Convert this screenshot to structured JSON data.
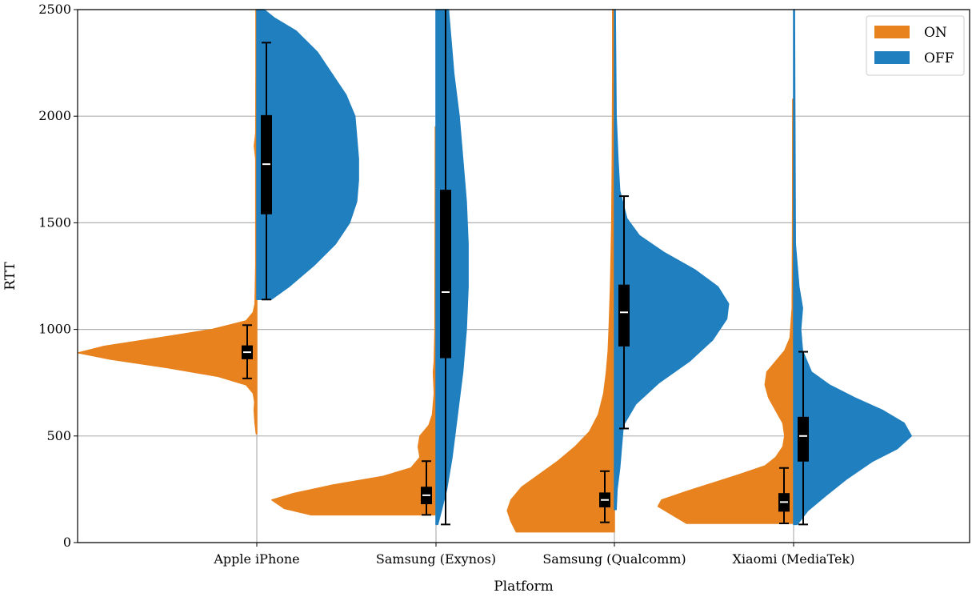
{
  "chart_data": {
    "type": "split-violin",
    "xlabel": "Platform",
    "ylabel": "RTT",
    "ylim": [
      0,
      2500
    ],
    "yticks": [
      0,
      500,
      1000,
      1500,
      2000,
      2500
    ],
    "categories": [
      "Apple iPhone",
      "Samsung (Exynos)",
      "Samsung (Qualcomm)",
      "Xiaomi (MediaTek)"
    ],
    "grid": true,
    "legend": {
      "position": "top-right",
      "entries": [
        "ON",
        "OFF"
      ]
    },
    "colors": {
      "ON": "#E8821E",
      "OFF": "#1F7FBF"
    },
    "series": [
      {
        "name": "ON",
        "side": "left",
        "box": [
          {
            "whisker_low": 770,
            "q1": 860,
            "median": 893,
            "q3": 925,
            "whisker_high": 1020
          },
          {
            "whisker_low": 130,
            "q1": 180,
            "median": 222,
            "q3": 262,
            "whisker_high": 382
          },
          {
            "whisker_low": 95,
            "q1": 165,
            "median": 200,
            "q3": 235,
            "whisker_high": 335
          },
          {
            "whisker_low": 90,
            "q1": 145,
            "median": 190,
            "q3": 232,
            "whisker_high": 350
          }
        ],
        "density": [
          {
            "ymin": 510,
            "ymax": 2500,
            "profile": [
              [
                510,
                0.003
              ],
              [
                560,
                0.01
              ],
              [
                620,
                0.015
              ],
              [
                660,
                0.012
              ],
              [
                700,
                0.02
              ],
              [
                740,
                0.06
              ],
              [
                780,
                0.22
              ],
              [
                820,
                0.5
              ],
              [
                860,
                0.82
              ],
              [
                890,
                1.0
              ],
              [
                920,
                0.86
              ],
              [
                960,
                0.55
              ],
              [
                1000,
                0.25
              ],
              [
                1040,
                0.06
              ],
              [
                1080,
                0.02
              ],
              [
                1120,
                0.01
              ],
              [
                1300,
                0.006
              ],
              [
                1600,
                0.006
              ],
              [
                1800,
                0.006
              ],
              [
                1860,
                0.014
              ],
              [
                1920,
                0.006
              ],
              [
                2200,
                0.005
              ],
              [
                2500,
                0.005
              ]
            ]
          },
          {
            "ymin": 130,
            "ymax": 1950,
            "profile": [
              [
                130,
                0.7
              ],
              [
                160,
                0.85
              ],
              [
                200,
                0.92
              ],
              [
                230,
                0.8
              ],
              [
                270,
                0.58
              ],
              [
                310,
                0.3
              ],
              [
                350,
                0.14
              ],
              [
                400,
                0.09
              ],
              [
                450,
                0.1
              ],
              [
                500,
                0.09
              ],
              [
                550,
                0.04
              ],
              [
                600,
                0.02
              ],
              [
                700,
                0.01
              ],
              [
                800,
                0.015
              ],
              [
                850,
                0.01
              ],
              [
                1000,
                0.006
              ],
              [
                1400,
                0.005
              ],
              [
                1950,
                0.004
              ]
            ]
          },
          {
            "ymin": 50,
            "ymax": 2500,
            "profile": [
              [
                50,
                0.55
              ],
              [
                100,
                0.58
              ],
              [
                150,
                0.6
              ],
              [
                200,
                0.58
              ],
              [
                260,
                0.52
              ],
              [
                320,
                0.42
              ],
              [
                380,
                0.32
              ],
              [
                450,
                0.22
              ],
              [
                520,
                0.14
              ],
              [
                600,
                0.09
              ],
              [
                700,
                0.06
              ],
              [
                800,
                0.045
              ],
              [
                900,
                0.035
              ],
              [
                1000,
                0.03
              ],
              [
                1200,
                0.022
              ],
              [
                1500,
                0.015
              ],
              [
                1800,
                0.012
              ],
              [
                2200,
                0.01
              ],
              [
                2500,
                0.01
              ]
            ]
          },
          {
            "ymin": 90,
            "ymax": 2080,
            "profile": [
              [
                90,
                0.6
              ],
              [
                130,
                0.68
              ],
              [
                170,
                0.76
              ],
              [
                200,
                0.74
              ],
              [
                240,
                0.6
              ],
              [
                280,
                0.45
              ],
              [
                320,
                0.3
              ],
              [
                360,
                0.16
              ],
              [
                400,
                0.1
              ],
              [
                450,
                0.06
              ],
              [
                500,
                0.05
              ],
              [
                560,
                0.06
              ],
              [
                620,
                0.1
              ],
              [
                680,
                0.14
              ],
              [
                740,
                0.16
              ],
              [
                800,
                0.15
              ],
              [
                850,
                0.1
              ],
              [
                900,
                0.05
              ],
              [
                960,
                0.02
              ],
              [
                1100,
                0.008
              ],
              [
                1500,
                0.006
              ],
              [
                2080,
                0.005
              ]
            ]
          }
        ]
      },
      {
        "name": "OFF",
        "side": "right",
        "box": [
          {
            "whisker_low": 1140,
            "q1": 1540,
            "median": 1775,
            "q3": 2005,
            "whisker_high": 2345
          },
          {
            "whisker_low": 85,
            "q1": 865,
            "median": 1175,
            "q3": 1655,
            "whisker_high": 2500
          },
          {
            "whisker_low": 535,
            "q1": 920,
            "median": 1080,
            "q3": 1210,
            "whisker_high": 1625
          },
          {
            "whisker_low": 85,
            "q1": 380,
            "median": 500,
            "q3": 590,
            "whisker_high": 895
          }
        ],
        "density": [
          {
            "ymin": 1140,
            "ymax": 2500,
            "profile": [
              [
                1140,
                0.08
              ],
              [
                1200,
                0.18
              ],
              [
                1300,
                0.32
              ],
              [
                1400,
                0.44
              ],
              [
                1500,
                0.52
              ],
              [
                1600,
                0.56
              ],
              [
                1700,
                0.57
              ],
              [
                1800,
                0.57
              ],
              [
                1900,
                0.56
              ],
              [
                2000,
                0.55
              ],
              [
                2100,
                0.5
              ],
              [
                2200,
                0.42
              ],
              [
                2300,
                0.34
              ],
              [
                2400,
                0.22
              ],
              [
                2460,
                0.1
              ],
              [
                2500,
                0.04
              ]
            ]
          },
          {
            "ymin": 85,
            "ymax": 2500,
            "profile": [
              [
                85,
                0.01
              ],
              [
                150,
                0.03
              ],
              [
                250,
                0.06
              ],
              [
                400,
                0.09
              ],
              [
                600,
                0.12
              ],
              [
                800,
                0.15
              ],
              [
                1000,
                0.17
              ],
              [
                1200,
                0.18
              ],
              [
                1400,
                0.18
              ],
              [
                1600,
                0.17
              ],
              [
                1800,
                0.15
              ],
              [
                2000,
                0.13
              ],
              [
                2200,
                0.1
              ],
              [
                2400,
                0.08
              ],
              [
                2500,
                0.07
              ]
            ]
          },
          {
            "ymin": 155,
            "ymax": 2500,
            "profile": [
              [
                155,
                0.01
              ],
              [
                250,
                0.015
              ],
              [
                350,
                0.03
              ],
              [
                450,
                0.04
              ],
              [
                550,
                0.05
              ],
              [
                650,
                0.12
              ],
              [
                750,
                0.25
              ],
              [
                850,
                0.42
              ],
              [
                950,
                0.55
              ],
              [
                1050,
                0.63
              ],
              [
                1120,
                0.64
              ],
              [
                1200,
                0.58
              ],
              [
                1280,
                0.45
              ],
              [
                1360,
                0.28
              ],
              [
                1440,
                0.14
              ],
              [
                1520,
                0.07
              ],
              [
                1650,
                0.03
              ],
              [
                1800,
                0.02
              ],
              [
                2000,
                0.01
              ],
              [
                2500,
                0.005
              ]
            ]
          },
          {
            "ymin": 85,
            "ymax": 2500,
            "profile": [
              [
                85,
                0.02
              ],
              [
                150,
                0.08
              ],
              [
                220,
                0.18
              ],
              [
                300,
                0.3
              ],
              [
                380,
                0.44
              ],
              [
                440,
                0.58
              ],
              [
                500,
                0.66
              ],
              [
                560,
                0.62
              ],
              [
                620,
                0.5
              ],
              [
                680,
                0.34
              ],
              [
                740,
                0.2
              ],
              [
                800,
                0.1
              ],
              [
                900,
                0.05
              ],
              [
                1000,
                0.04
              ],
              [
                1100,
                0.05
              ],
              [
                1200,
                0.03
              ],
              [
                1400,
                0.01
              ],
              [
                2500,
                0.005
              ]
            ]
          }
        ]
      }
    ]
  }
}
